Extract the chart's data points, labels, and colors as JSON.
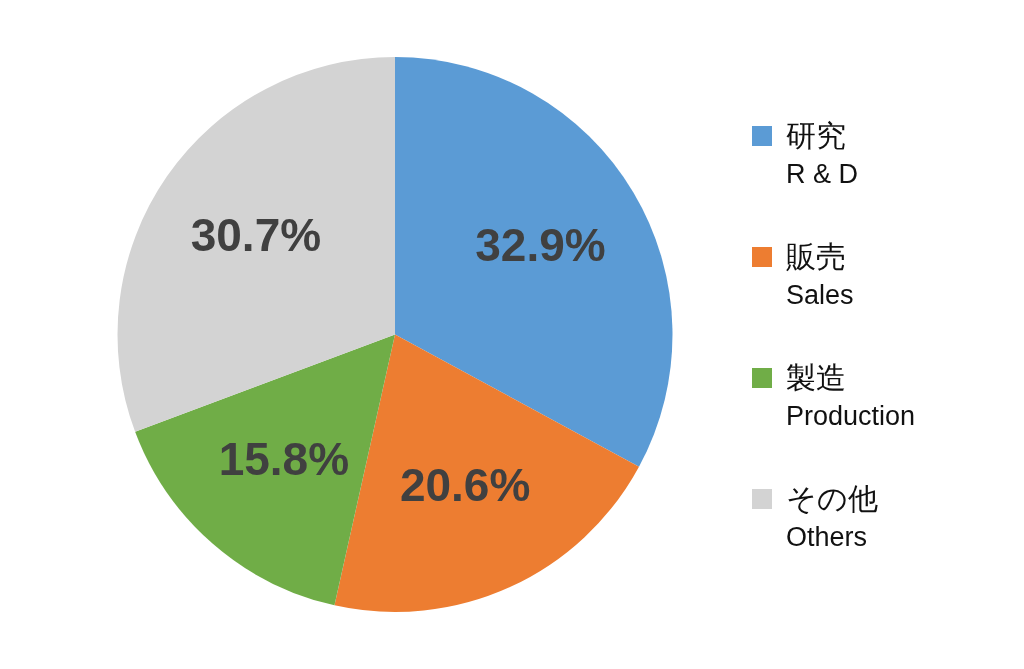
{
  "chart_data": {
    "type": "pie",
    "categories": [
      "研究\nR & D",
      "販売\nSales",
      "製造\nProduction",
      "その他\nOthers"
    ],
    "values": [
      32.9,
      20.6,
      15.8,
      30.7
    ],
    "colors": [
      "#5b9bd5",
      "#ed7d31",
      "#70ad47",
      "#d3d3d3"
    ],
    "value_labels": [
      "32.9%",
      "20.6%",
      "15.8%",
      "30.7%"
    ],
    "legend": "right"
  }
}
